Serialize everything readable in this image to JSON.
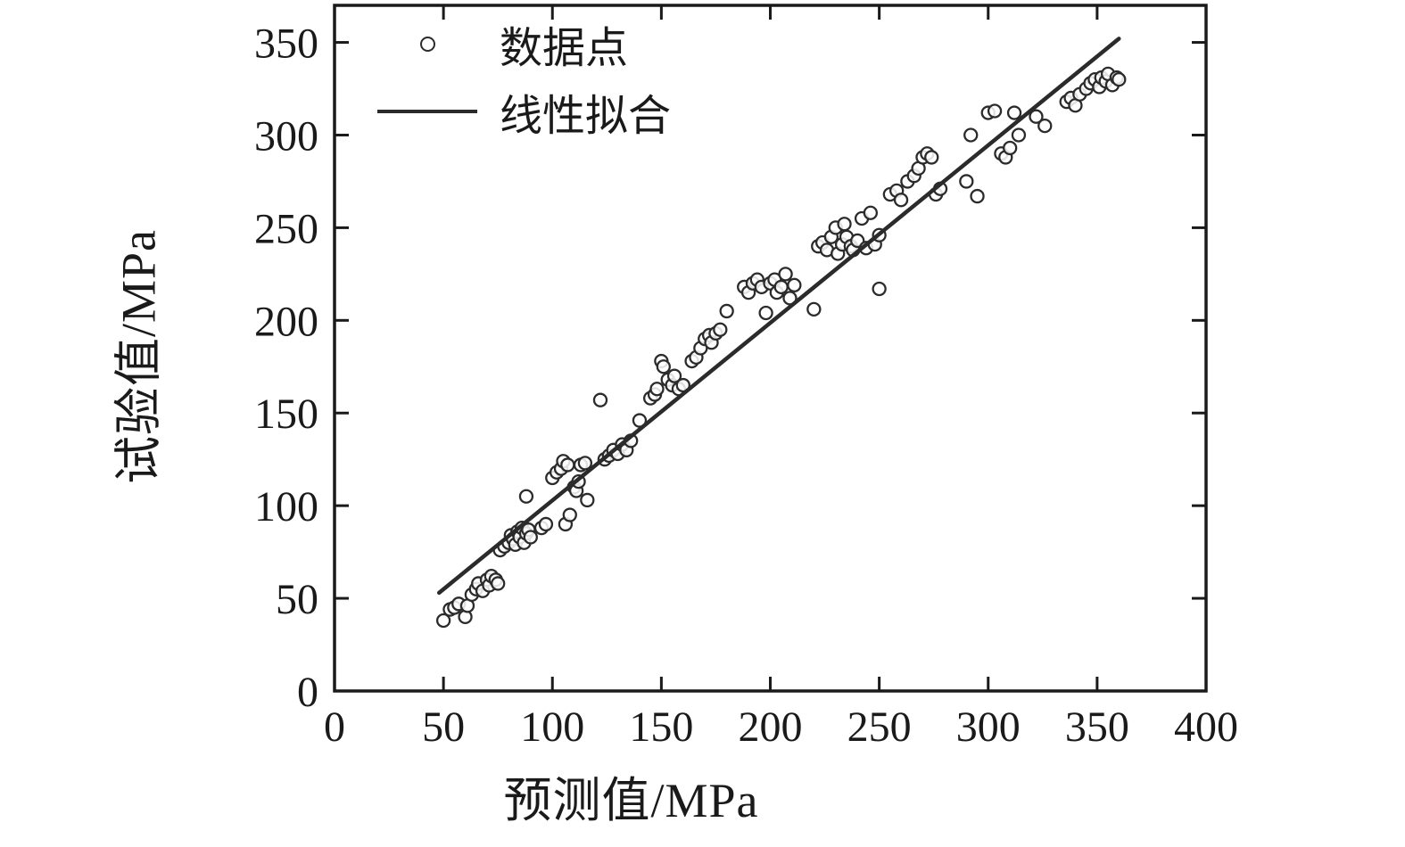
{
  "chart_data": {
    "type": "scatter",
    "title": "",
    "xlabel": "预测值/MPa",
    "ylabel": "试验值/MPa",
    "xlim": [
      0,
      400
    ],
    "ylim": [
      0,
      370
    ],
    "xticks": [
      0,
      50,
      100,
      150,
      200,
      250,
      300,
      350,
      400
    ],
    "yticks": [
      0,
      50,
      100,
      150,
      200,
      250,
      300,
      350
    ],
    "grid": false,
    "legend_position": "top-left-inside",
    "legend": [
      {
        "label": "数据点",
        "swatch": "marker"
      },
      {
        "label": "线性拟合",
        "swatch": "line"
      }
    ],
    "colors": {
      "marker_edge": "#2b2b2b",
      "marker_fill": "#ffffff",
      "fit_line": "#2b2b2b",
      "frame": "#1a1a1a",
      "text": "#1a1a1a"
    },
    "series": [
      {
        "name": "数据点",
        "type": "scatter",
        "points": [
          [
            50,
            38
          ],
          [
            53,
            44
          ],
          [
            55,
            45
          ],
          [
            57,
            47
          ],
          [
            60,
            40
          ],
          [
            61,
            46
          ],
          [
            63,
            52
          ],
          [
            65,
            55
          ],
          [
            66,
            58
          ],
          [
            68,
            54
          ],
          [
            70,
            60
          ],
          [
            71,
            57
          ],
          [
            72,
            62
          ],
          [
            74,
            60
          ],
          [
            75,
            58
          ],
          [
            76,
            76
          ],
          [
            78,
            78
          ],
          [
            80,
            80
          ],
          [
            81,
            84
          ],
          [
            82,
            82
          ],
          [
            83,
            79
          ],
          [
            84,
            86
          ],
          [
            85,
            83
          ],
          [
            86,
            88
          ],
          [
            87,
            80
          ],
          [
            88,
            85
          ],
          [
            89,
            87
          ],
          [
            90,
            83
          ],
          [
            88,
            105
          ],
          [
            95,
            88
          ],
          [
            97,
            90
          ],
          [
            100,
            115
          ],
          [
            102,
            118
          ],
          [
            104,
            120
          ],
          [
            105,
            124
          ],
          [
            106,
            90
          ],
          [
            107,
            122
          ],
          [
            108,
            95
          ],
          [
            110,
            110
          ],
          [
            111,
            108
          ],
          [
            112,
            113
          ],
          [
            113,
            122
          ],
          [
            115,
            123
          ],
          [
            116,
            103
          ],
          [
            122,
            157
          ],
          [
            124,
            125
          ],
          [
            126,
            127
          ],
          [
            128,
            130
          ],
          [
            130,
            128
          ],
          [
            132,
            133
          ],
          [
            134,
            130
          ],
          [
            136,
            135
          ],
          [
            140,
            146
          ],
          [
            145,
            158
          ],
          [
            147,
            160
          ],
          [
            148,
            163
          ],
          [
            150,
            178
          ],
          [
            151,
            175
          ],
          [
            153,
            168
          ],
          [
            155,
            165
          ],
          [
            156,
            170
          ],
          [
            158,
            163
          ],
          [
            160,
            165
          ],
          [
            164,
            178
          ],
          [
            166,
            180
          ],
          [
            168,
            185
          ],
          [
            170,
            190
          ],
          [
            172,
            192
          ],
          [
            173,
            188
          ],
          [
            175,
            193
          ],
          [
            177,
            195
          ],
          [
            180,
            205
          ],
          [
            188,
            218
          ],
          [
            190,
            215
          ],
          [
            192,
            220
          ],
          [
            194,
            222
          ],
          [
            196,
            218
          ],
          [
            198,
            204
          ],
          [
            200,
            220
          ],
          [
            202,
            222
          ],
          [
            203,
            215
          ],
          [
            205,
            218
          ],
          [
            207,
            225
          ],
          [
            209,
            212
          ],
          [
            211,
            219
          ],
          [
            220,
            206
          ],
          [
            222,
            240
          ],
          [
            224,
            242
          ],
          [
            226,
            238
          ],
          [
            228,
            245
          ],
          [
            230,
            250
          ],
          [
            231,
            236
          ],
          [
            233,
            241
          ],
          [
            234,
            252
          ],
          [
            235,
            245
          ],
          [
            237,
            240
          ],
          [
            238,
            238
          ],
          [
            240,
            243
          ],
          [
            242,
            255
          ],
          [
            244,
            239
          ],
          [
            246,
            258
          ],
          [
            248,
            241
          ],
          [
            250,
            246
          ],
          [
            250,
            217
          ],
          [
            255,
            268
          ],
          [
            258,
            270
          ],
          [
            260,
            265
          ],
          [
            263,
            275
          ],
          [
            266,
            278
          ],
          [
            268,
            282
          ],
          [
            270,
            288
          ],
          [
            272,
            290
          ],
          [
            274,
            288
          ],
          [
            276,
            268
          ],
          [
            278,
            271
          ],
          [
            290,
            275
          ],
          [
            292,
            300
          ],
          [
            295,
            267
          ],
          [
            300,
            312
          ],
          [
            303,
            313
          ],
          [
            306,
            290
          ],
          [
            308,
            288
          ],
          [
            310,
            293
          ],
          [
            312,
            312
          ],
          [
            314,
            300
          ],
          [
            322,
            310
          ],
          [
            326,
            305
          ],
          [
            336,
            318
          ],
          [
            338,
            320
          ],
          [
            340,
            316
          ],
          [
            342,
            322
          ],
          [
            345,
            325
          ],
          [
            347,
            328
          ],
          [
            349,
            330
          ],
          [
            351,
            326
          ],
          [
            352,
            331
          ],
          [
            354,
            329
          ],
          [
            355,
            333
          ],
          [
            357,
            327
          ],
          [
            359,
            331
          ],
          [
            360,
            330
          ]
        ]
      },
      {
        "name": "线性拟合",
        "type": "line",
        "points": [
          [
            48,
            53
          ],
          [
            360,
            352
          ]
        ]
      }
    ]
  }
}
